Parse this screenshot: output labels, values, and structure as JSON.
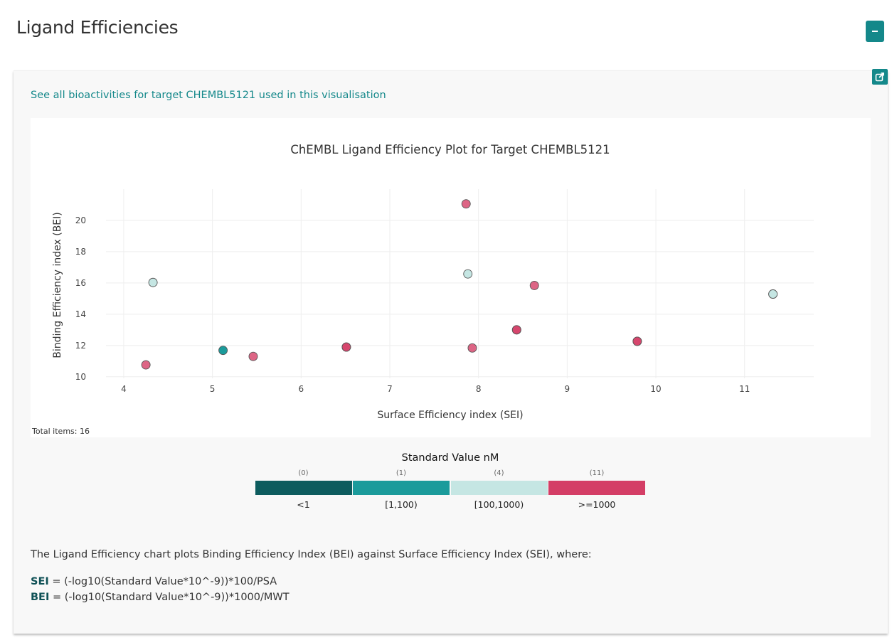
{
  "page": {
    "title": "Ligand Efficiencies"
  },
  "card": {
    "link_text": "See all bioactivities for target CHEMBL5121 used in this visualisation",
    "total_items": "Total items: 16"
  },
  "colors": {
    "accent": "#14888a",
    "bin_lt1": "#0d5c5e",
    "bin_1_100": "#1b9b9b",
    "bin_100_1000": "#c5e6e3",
    "bin_ge1000": "#d43e66"
  },
  "legend": {
    "title": "Standard Value nM",
    "bins": [
      {
        "count": "(0)",
        "label": "<1",
        "color": "#0d5c5e"
      },
      {
        "count": "(1)",
        "label": "[1,100)",
        "color": "#1b9b9b"
      },
      {
        "count": "(4)",
        "label": "[100,1000)",
        "color": "#c5e6e3"
      },
      {
        "count": "(11)",
        "label": ">=1000",
        "color": "#d43e66"
      }
    ]
  },
  "description": {
    "text": "The Ligand Efficiency chart plots Binding Efficiency Index (BEI) against Surface Efficiency Index (SEI), where:",
    "sei_label": "SEI",
    "sei_formula": " = (-log10(Standard Value*10^-9))*100/PSA",
    "bei_label": "BEI",
    "bei_formula": " = (-log10(Standard Value*10^-9))*1000/MWT"
  },
  "chart_data": {
    "type": "scatter",
    "title": "ChEMBL Ligand Efficiency Plot for Target CHEMBL5121",
    "xlabel": "Surface Efficiency index (SEI)",
    "ylabel": "Binding Efficiency index (BEI)",
    "xlim": [
      3.8,
      11.78
    ],
    "ylim": [
      9.9,
      22
    ],
    "xticks": [
      4,
      5,
      6,
      7,
      8,
      9,
      10,
      11
    ],
    "yticks": [
      10,
      12,
      14,
      16,
      18,
      20
    ],
    "grid": true,
    "points": [
      {
        "x": 7.86,
        "y": 21.06,
        "bin": ">=1000"
      },
      {
        "x": 7.88,
        "y": 16.58,
        "bin": "[100,1000)"
      },
      {
        "x": 4.33,
        "y": 16.03,
        "bin": "[100,1000)"
      },
      {
        "x": 8.63,
        "y": 15.84,
        "bin": ">=1000"
      },
      {
        "x": 11.32,
        "y": 15.29,
        "bin": "[100,1000)"
      },
      {
        "x": 8.43,
        "y": 13.0,
        "bin": ">=1000"
      },
      {
        "x": 8.43,
        "y": 13.0,
        "bin": ">=1000"
      },
      {
        "x": 9.79,
        "y": 12.27,
        "bin": ">=1000"
      },
      {
        "x": 9.79,
        "y": 12.27,
        "bin": ">=1000"
      },
      {
        "x": 6.51,
        "y": 11.9,
        "bin": ">=1000"
      },
      {
        "x": 6.51,
        "y": 11.9,
        "bin": ">=1000"
      },
      {
        "x": 7.93,
        "y": 11.84,
        "bin": ">=1000"
      },
      {
        "x": 5.12,
        "y": 11.69,
        "bin": "[1,100)"
      },
      {
        "x": 5.46,
        "y": 11.3,
        "bin": ">=1000"
      },
      {
        "x": 4.25,
        "y": 10.76,
        "bin": ">=1000"
      },
      {
        "x": 11.32,
        "y": 15.29,
        "bin": "[100,1000)"
      }
    ]
  }
}
